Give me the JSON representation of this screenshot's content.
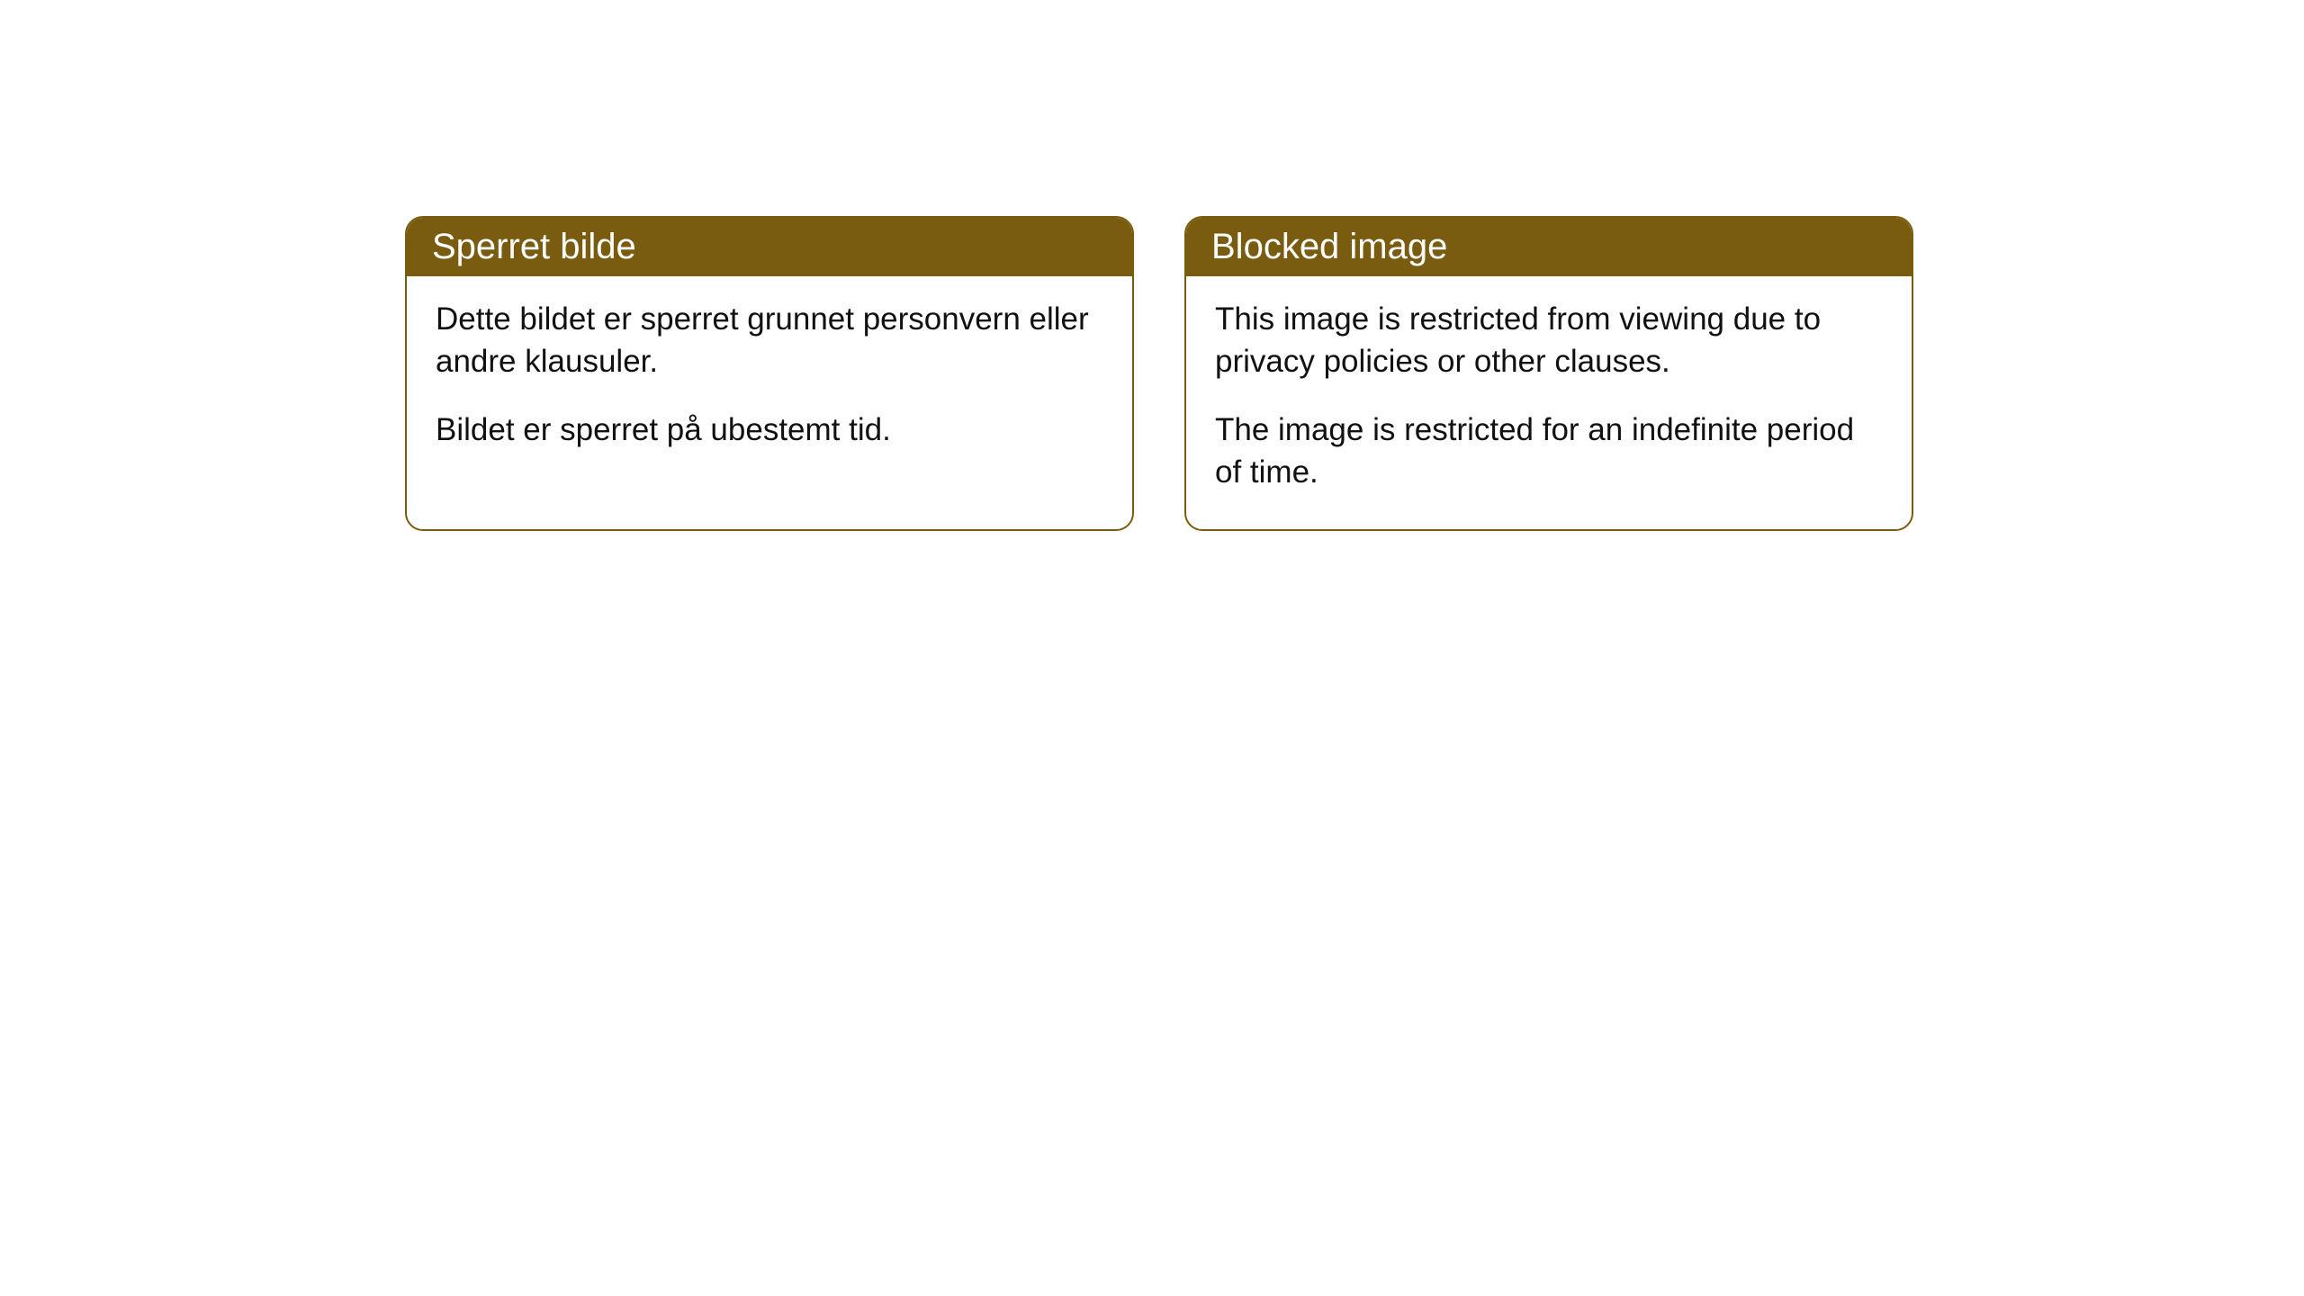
{
  "cards": [
    {
      "title": "Sperret bilde",
      "paragraph1": "Dette bildet er sperret grunnet personvern eller andre klausuler.",
      "paragraph2": "Bildet er sperret på ubestemt tid."
    },
    {
      "title": "Blocked image",
      "paragraph1": "This image is restricted from viewing due to privacy policies or other clauses.",
      "paragraph2": "The image is restricted for an indefinite period of time."
    }
  ],
  "styles": {
    "header_background": "#7a5c10",
    "header_text_color": "#ffffff",
    "body_text_color": "#111111",
    "card_border_color": "#7a5c10",
    "card_background": "#ffffff",
    "page_background": "#ffffff",
    "border_radius": 20,
    "header_fontsize": 40,
    "body_fontsize": 35
  }
}
